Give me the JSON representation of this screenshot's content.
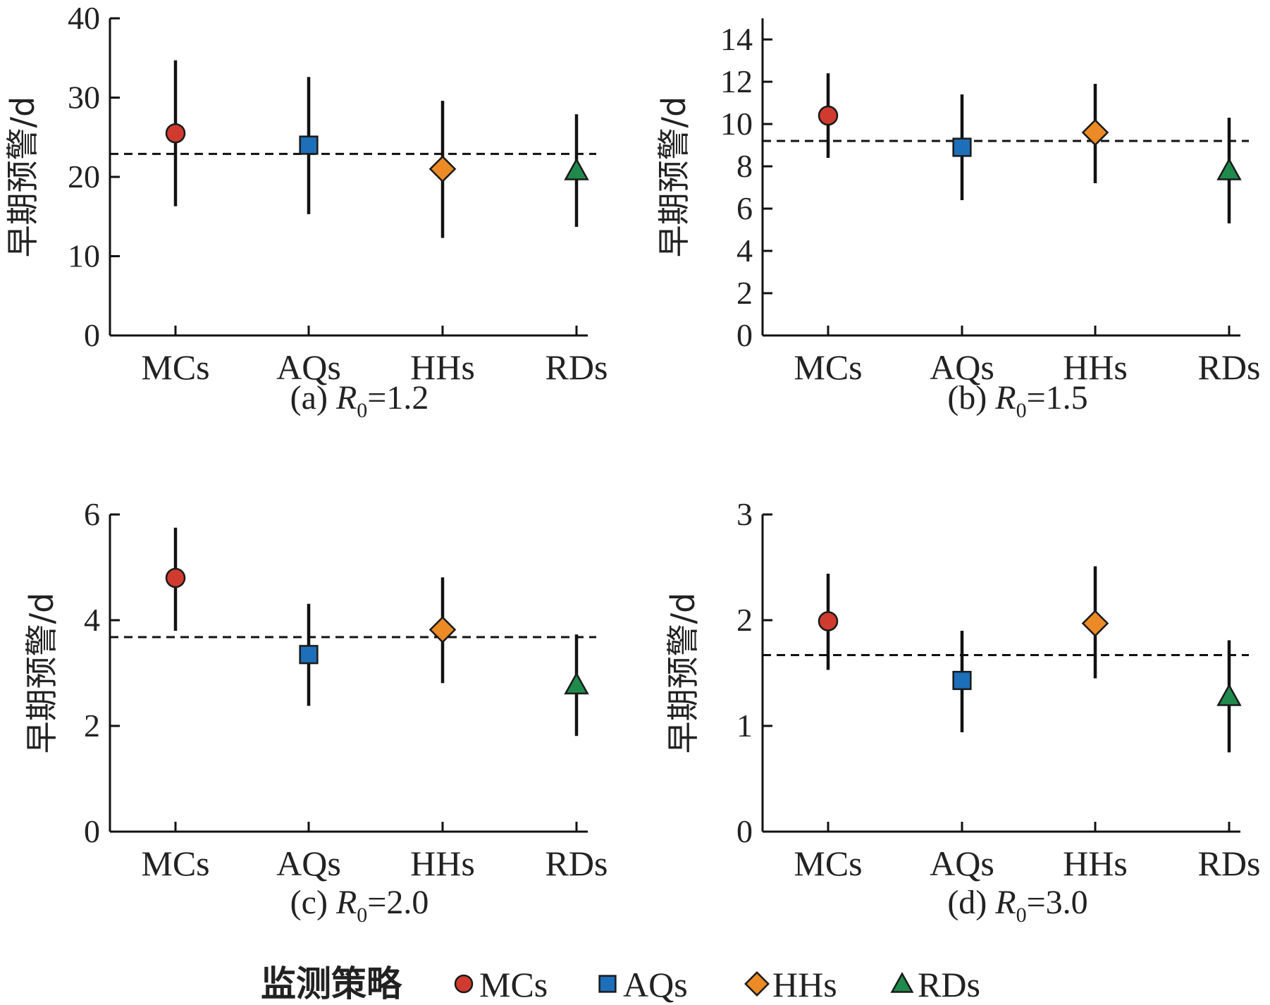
{
  "chart_data": [
    {
      "type": "errorbar",
      "panel": "a",
      "caption_prefix": "(a) ",
      "caption_var": "R",
      "caption_sub": "0",
      "caption_value": "=1.2",
      "ylabel": "早期预警/d",
      "categories": [
        "MCs",
        "AQs",
        "HHs",
        "RDs"
      ],
      "ylim": [
        0,
        40
      ],
      "yticks": [
        "0",
        "10",
        "20",
        "30",
        "40"
      ],
      "ytick_values": [
        0,
        10,
        20,
        30,
        40
      ],
      "values": [
        25.5,
        24.0,
        21.0,
        20.8
      ],
      "lower": [
        16.3,
        15.3,
        12.3,
        13.7
      ],
      "upper": [
        34.7,
        32.6,
        29.6,
        27.9
      ],
      "reference": 22.9
    },
    {
      "type": "errorbar",
      "panel": "b",
      "caption_prefix": "(b) ",
      "caption_var": "R",
      "caption_sub": "0",
      "caption_value": "=1.5",
      "ylabel": "早期预警/d",
      "categories": [
        "MCs",
        "AQs",
        "HHs",
        "RDs"
      ],
      "ylim": [
        0,
        15
      ],
      "yticks": [
        "0",
        "2",
        "4",
        "6",
        "8",
        "10",
        "12",
        "14"
      ],
      "ytick_values": [
        0,
        2,
        4,
        6,
        8,
        10,
        12,
        14
      ],
      "values": [
        10.4,
        8.9,
        9.6,
        7.8
      ],
      "lower": [
        8.4,
        6.4,
        7.2,
        5.3
      ],
      "upper": [
        12.4,
        11.4,
        11.9,
        10.3
      ],
      "reference": 9.2
    },
    {
      "type": "errorbar",
      "panel": "c",
      "caption_prefix": "(c) ",
      "caption_var": "R",
      "caption_sub": "0",
      "caption_value": "=2.0",
      "ylabel": "早期预警/d",
      "categories": [
        "MCs",
        "AQs",
        "HHs",
        "RDs"
      ],
      "ylim": [
        0,
        6
      ],
      "yticks": [
        "0",
        "2",
        "4",
        "6"
      ],
      "ytick_values": [
        0,
        2,
        4,
        6
      ],
      "values": [
        4.8,
        3.35,
        3.82,
        2.78
      ],
      "lower": [
        3.8,
        2.38,
        2.81,
        1.81
      ],
      "upper": [
        5.75,
        4.31,
        4.81,
        3.73
      ],
      "reference": 3.68
    },
    {
      "type": "errorbar",
      "panel": "d",
      "caption_prefix": "(d) ",
      "caption_var": "R",
      "caption_sub": "0",
      "caption_value": "=3.0",
      "ylabel": "早期预警/d",
      "categories": [
        "MCs",
        "AQs",
        "HHs",
        "RDs"
      ],
      "ylim": [
        0,
        3
      ],
      "yticks": [
        "0",
        "1",
        "2",
        "3"
      ],
      "ytick_values": [
        0,
        1,
        2,
        3
      ],
      "values": [
        1.99,
        1.43,
        1.97,
        1.28
      ],
      "lower": [
        1.53,
        0.94,
        1.45,
        0.75
      ],
      "upper": [
        2.44,
        1.9,
        2.51,
        1.81
      ],
      "reference": 1.67
    }
  ],
  "legend": {
    "title": "监测策略",
    "items": [
      {
        "label": "MCs",
        "marker": "circle",
        "color": "#d13b2f"
      },
      {
        "label": "AQs",
        "marker": "square",
        "color": "#1c6fb8"
      },
      {
        "label": "HHs",
        "marker": "diamond",
        "color": "#ec8a25"
      },
      {
        "label": "RDs",
        "marker": "triangle",
        "color": "#1f8a4c"
      }
    ]
  },
  "colors": {
    "MCs": "#d13b2f",
    "AQs": "#1c6fb8",
    "HHs": "#ec8a25",
    "RDs": "#1f8a4c",
    "axis": "#111111",
    "reference_line": "#111111"
  }
}
